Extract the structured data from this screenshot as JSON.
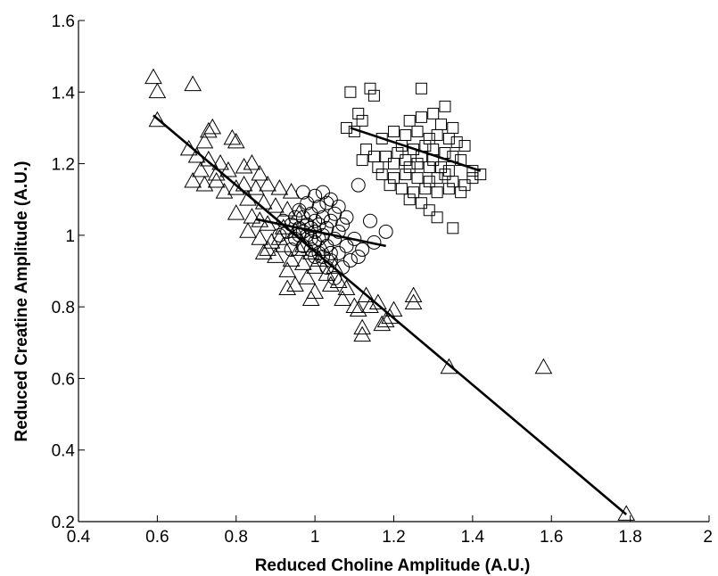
{
  "chart_data": {
    "type": "scatter",
    "xlabel": "Reduced Choline Amplitude (A.U.)",
    "ylabel": "Reduced Creatine Amplitude (A.U.)",
    "xlim": [
      0.4,
      2.0
    ],
    "ylim": [
      0.2,
      1.6
    ],
    "x_ticks": [
      "0.4",
      "0.6",
      "0.8",
      "1",
      "1.2",
      "1.4",
      "1.6",
      "1.8",
      "2"
    ],
    "y_ticks": [
      "0.2",
      "0.4",
      "0.6",
      "0.8",
      "1",
      "1.2",
      "1.4",
      "1.6"
    ],
    "grid": false,
    "legend": false,
    "series": [
      {
        "marker": "triangle",
        "points": [
          [
            0.59,
            1.44
          ],
          [
            0.6,
            1.4
          ],
          [
            0.6,
            1.32
          ],
          [
            0.69,
            1.42
          ],
          [
            0.73,
            1.29
          ],
          [
            0.74,
            1.3
          ],
          [
            0.72,
            1.26
          ],
          [
            0.79,
            1.27
          ],
          [
            0.8,
            1.26
          ],
          [
            0.68,
            1.24
          ],
          [
            0.7,
            1.22
          ],
          [
            0.73,
            1.21
          ],
          [
            0.76,
            1.2
          ],
          [
            0.82,
            1.19
          ],
          [
            0.71,
            1.18
          ],
          [
            0.75,
            1.17
          ],
          [
            0.78,
            1.18
          ],
          [
            0.84,
            1.2
          ],
          [
            0.86,
            1.17
          ],
          [
            0.69,
            1.15
          ],
          [
            0.72,
            1.14
          ],
          [
            0.75,
            1.15
          ],
          [
            0.77,
            1.12
          ],
          [
            0.8,
            1.13
          ],
          [
            0.82,
            1.14
          ],
          [
            0.85,
            1.13
          ],
          [
            0.88,
            1.14
          ],
          [
            0.91,
            1.13
          ],
          [
            0.94,
            1.12
          ],
          [
            0.83,
            1.1
          ],
          [
            0.87,
            1.09
          ],
          [
            0.9,
            1.08
          ],
          [
            0.93,
            1.07
          ],
          [
            0.96,
            1.06
          ],
          [
            0.8,
            1.06
          ],
          [
            0.84,
            1.05
          ],
          [
            0.88,
            1.03
          ],
          [
            0.92,
            1.02
          ],
          [
            0.95,
            1.01
          ],
          [
            0.83,
            1.01
          ],
          [
            0.86,
            0.99
          ],
          [
            0.89,
            0.98
          ],
          [
            0.92,
            0.97
          ],
          [
            0.96,
            0.96
          ],
          [
            0.99,
            0.95
          ],
          [
            1.02,
            0.96
          ],
          [
            0.87,
            0.95
          ],
          [
            0.9,
            0.94
          ],
          [
            0.94,
            0.93
          ],
          [
            0.97,
            0.92
          ],
          [
            1.0,
            0.91
          ],
          [
            0.88,
            0.96
          ],
          [
            0.93,
            0.9
          ],
          [
            0.98,
            0.88
          ],
          [
            1.03,
            0.89
          ],
          [
            1.06,
            0.87
          ],
          [
            0.95,
            0.86
          ],
          [
            1.0,
            0.84
          ],
          [
            1.04,
            0.86
          ],
          [
            1.08,
            0.85
          ],
          [
            0.93,
            0.85
          ],
          [
            0.99,
            0.82
          ],
          [
            1.07,
            0.82
          ],
          [
            1.1,
            0.8
          ],
          [
            1.13,
            0.83
          ],
          [
            1.14,
            0.8
          ],
          [
            1.11,
            0.79
          ],
          [
            1.16,
            0.81
          ],
          [
            1.17,
            0.75
          ],
          [
            1.18,
            0.76
          ],
          [
            1.2,
            0.79
          ],
          [
            1.19,
            0.77
          ],
          [
            1.12,
            0.74
          ],
          [
            1.12,
            0.72
          ],
          [
            1.25,
            0.83
          ],
          [
            1.25,
            0.81
          ],
          [
            1.34,
            0.63
          ],
          [
            1.58,
            0.63
          ],
          [
            1.79,
            0.22
          ],
          [
            0.97,
            0.97
          ],
          [
            1.01,
            0.93
          ],
          [
            0.91,
            0.99
          ],
          [
            1.05,
            0.91
          ],
          [
            0.86,
            1.04
          ]
        ]
      },
      {
        "marker": "circle",
        "points": [
          [
            0.92,
            1.04
          ],
          [
            0.94,
            1.03
          ],
          [
            0.96,
            1.02
          ],
          [
            0.97,
            1.05
          ],
          [
            0.98,
            1.0
          ],
          [
            0.99,
            0.99
          ],
          [
            1.0,
            1.01
          ],
          [
            1.01,
            1.03
          ],
          [
            1.0,
            0.98
          ],
          [
            1.02,
            1.0
          ],
          [
            1.03,
            1.02
          ],
          [
            1.04,
            1.04
          ],
          [
            0.99,
            1.06
          ],
          [
            1.01,
            1.08
          ],
          [
            1.03,
            1.09
          ],
          [
            1.04,
            1.1
          ],
          [
            1.02,
            1.12
          ],
          [
            1.0,
            1.11
          ],
          [
            0.98,
            1.09
          ],
          [
            0.96,
            1.07
          ],
          [
            0.95,
            1.05
          ],
          [
            0.93,
            1.01
          ],
          [
            0.95,
            0.99
          ],
          [
            0.97,
            0.97
          ],
          [
            0.99,
            0.96
          ],
          [
            1.01,
            0.95
          ],
          [
            1.03,
            0.97
          ],
          [
            1.05,
            0.99
          ],
          [
            1.06,
            1.01
          ],
          [
            1.07,
            1.03
          ],
          [
            1.05,
            1.06
          ],
          [
            1.06,
            1.08
          ],
          [
            1.02,
            0.94
          ],
          [
            1.04,
            0.93
          ],
          [
            1.06,
            0.95
          ],
          [
            1.08,
            0.97
          ],
          [
            1.1,
            0.99
          ],
          [
            1.12,
            0.96
          ],
          [
            1.09,
            0.93
          ],
          [
            1.11,
            0.94
          ],
          [
            1.15,
            0.98
          ],
          [
            1.14,
            1.04
          ],
          [
            1.18,
            1.01
          ],
          [
            1.11,
            1.14
          ],
          [
            0.97,
            1.12
          ],
          [
            1.0,
            0.94
          ],
          [
            0.98,
            1.03
          ],
          [
            1.01,
            0.99
          ],
          [
            1.08,
            1.05
          ],
          [
            1.03,
            0.91
          ],
          [
            1.05,
            0.88
          ],
          [
            0.94,
            0.96
          ],
          [
            0.91,
            1.0
          ],
          [
            0.96,
            1.0
          ],
          [
            1.0,
            1.04
          ],
          [
            0.99,
            1.02
          ],
          [
            1.02,
            1.05
          ],
          [
            1.07,
            0.91
          ],
          [
            1.04,
            0.95
          ],
          [
            0.97,
            1.01
          ]
        ]
      },
      {
        "marker": "square",
        "points": [
          [
            1.09,
            1.4
          ],
          [
            1.14,
            1.41
          ],
          [
            1.15,
            1.39
          ],
          [
            1.27,
            1.41
          ],
          [
            1.33,
            1.36
          ],
          [
            1.11,
            1.34
          ],
          [
            1.12,
            1.32
          ],
          [
            1.08,
            1.3
          ],
          [
            1.1,
            1.29
          ],
          [
            1.24,
            1.32
          ],
          [
            1.27,
            1.33
          ],
          [
            1.3,
            1.34
          ],
          [
            1.32,
            1.31
          ],
          [
            1.35,
            1.3
          ],
          [
            1.2,
            1.29
          ],
          [
            1.23,
            1.28
          ],
          [
            1.26,
            1.29
          ],
          [
            1.29,
            1.27
          ],
          [
            1.31,
            1.28
          ],
          [
            1.34,
            1.27
          ],
          [
            1.36,
            1.26
          ],
          [
            1.38,
            1.25
          ],
          [
            1.22,
            1.25
          ],
          [
            1.25,
            1.24
          ],
          [
            1.28,
            1.25
          ],
          [
            1.3,
            1.24
          ],
          [
            1.33,
            1.23
          ],
          [
            1.35,
            1.22
          ],
          [
            1.37,
            1.21
          ],
          [
            1.13,
            1.24
          ],
          [
            1.15,
            1.22
          ],
          [
            1.12,
            1.21
          ],
          [
            1.18,
            1.22
          ],
          [
            1.2,
            1.2
          ],
          [
            1.23,
            1.21
          ],
          [
            1.26,
            1.2
          ],
          [
            1.29,
            1.19
          ],
          [
            1.32,
            1.19
          ],
          [
            1.34,
            1.18
          ],
          [
            1.17,
            1.17
          ],
          [
            1.2,
            1.16
          ],
          [
            1.23,
            1.17
          ],
          [
            1.26,
            1.16
          ],
          [
            1.29,
            1.15
          ],
          [
            1.31,
            1.16
          ],
          [
            1.35,
            1.15
          ],
          [
            1.38,
            1.14
          ],
          [
            1.4,
            1.16
          ],
          [
            1.42,
            1.17
          ],
          [
            1.4,
            1.18
          ],
          [
            1.19,
            1.14
          ],
          [
            1.22,
            1.13
          ],
          [
            1.25,
            1.12
          ],
          [
            1.28,
            1.13
          ],
          [
            1.31,
            1.12
          ],
          [
            1.34,
            1.13
          ],
          [
            1.37,
            1.12
          ],
          [
            1.24,
            1.1
          ],
          [
            1.27,
            1.09
          ],
          [
            1.29,
            1.07
          ],
          [
            1.31,
            1.05
          ],
          [
            1.35,
            1.02
          ],
          [
            1.16,
            1.19
          ],
          [
            1.27,
            1.22
          ],
          [
            1.24,
            1.19
          ],
          [
            1.3,
            1.21
          ],
          [
            1.21,
            1.23
          ],
          [
            1.33,
            1.17
          ],
          [
            1.17,
            1.27
          ]
        ]
      }
    ],
    "fit_lines": [
      {
        "series_marker": "triangle",
        "from": [
          0.59,
          1.335
        ],
        "to": [
          1.79,
          0.22
        ]
      },
      {
        "series_marker": "circle",
        "from": [
          0.85,
          1.045
        ],
        "to": [
          1.18,
          0.97
        ]
      },
      {
        "series_marker": "square",
        "from": [
          1.09,
          1.3
        ],
        "to": [
          1.42,
          1.18
        ]
      }
    ]
  }
}
